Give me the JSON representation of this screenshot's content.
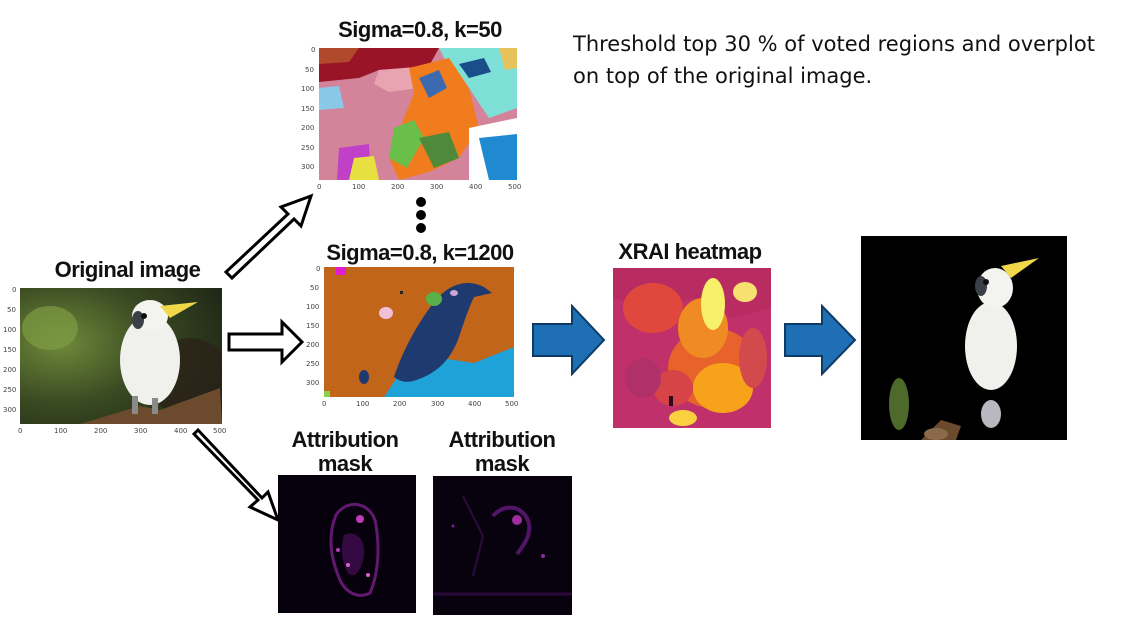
{
  "labels": {
    "original": "Original image",
    "seg_top": "Sigma=0.8, k=50",
    "seg_mid": "Sigma=0.8, k=1200",
    "xrai": "XRAI heatmap",
    "attr1_line1": "Attribution",
    "attr1_line2": "mask",
    "attr2_line1": "Attribution",
    "attr2_line2": "mask"
  },
  "note": {
    "line1": "Threshold top 30 % of voted regions and overplot",
    "line2": "on top of the original image."
  },
  "axes": {
    "original_x": [
      "0",
      "100",
      "200",
      "300",
      "400",
      "500"
    ],
    "original_y": [
      "0",
      "50",
      "100",
      "150",
      "200",
      "250",
      "300"
    ],
    "seg_top_x": [
      "0",
      "100",
      "200",
      "300",
      "400",
      "500"
    ],
    "seg_top_y": [
      "0",
      "50",
      "100",
      "150",
      "200",
      "250",
      "300"
    ],
    "seg_mid_x": [
      "0",
      "100",
      "200",
      "300",
      "400",
      "500"
    ],
    "seg_mid_y": [
      "0",
      "50",
      "100",
      "150",
      "200",
      "250",
      "300"
    ]
  },
  "colors": {
    "arrow_blue": "#1f6fb5",
    "arrow_blue_stroke": "#0d3b66",
    "seg_mid_bg": "#c1651b",
    "seg_mid_bird": "#1e3a6e",
    "seg_mid_lower": "#1fa2d8",
    "heat_base": "#c0306a",
    "heat_hot": "#f7a21b",
    "heat_max": "#f6f06a"
  }
}
